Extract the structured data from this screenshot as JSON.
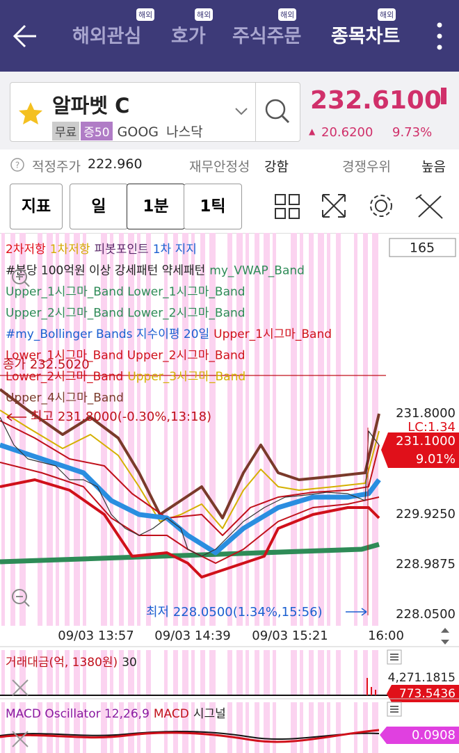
{
  "header": {
    "tabs": [
      {
        "label": "해외관심",
        "badge": "해외"
      },
      {
        "label": "호가",
        "badge": "해외"
      },
      {
        "label": "주식주문",
        "badge": "해외"
      },
      {
        "label": "종목차트",
        "badge": "해외"
      }
    ]
  },
  "stock": {
    "name": "알파벳 C",
    "tags": [
      "무료",
      "증50"
    ],
    "ticker": "GOOG",
    "market": "나스닥",
    "price": "232.6100",
    "change": "20.6200",
    "change_pct": "9.73%"
  },
  "info": [
    {
      "label": "적정주가",
      "value": "222.960"
    },
    {
      "label": "재무안정성",
      "value": "강함"
    },
    {
      "label": "경쟁우위",
      "value": "높음"
    }
  ],
  "toolbar": {
    "buttons": [
      "지표",
      "일",
      "1분",
      "1틱"
    ]
  },
  "chart": {
    "count": "165",
    "legend": [
      [
        {
          "text": "2차저항",
          "color": "#e0101a"
        },
        {
          "text": "1차저항",
          "color": "#d4a800"
        },
        {
          "text": "피봇포인트",
          "color": "#5a2a6a"
        },
        {
          "text": "1차 지지",
          "color": "#1a5fd0"
        }
      ],
      [
        {
          "text": "#분당 100억원 이상 강세패턴 약세패턴",
          "color": "#222222"
        },
        {
          "text": "my_VWAP_Band",
          "color": "#2e8b57"
        }
      ],
      [
        {
          "text": "Upper_1시그마_Band Lower_1시그마_Band",
          "color": "#2e8b57"
        }
      ],
      [
        {
          "text": "Upper_2시그마_Band Lower_2시그마_Band",
          "color": "#2e8b57"
        }
      ],
      [
        {
          "text": "#my_Bollinger Bands 지수이평 20일",
          "color": "#1a5fd0"
        },
        {
          "text": "Upper_1시그마_Band",
          "color": "#d0101a"
        }
      ],
      [
        {
          "text": "Lower_1시그마_Band Upper_2시그마_Band",
          "color": "#d0101a"
        }
      ],
      [
        {
          "text": "Lower_2시그마_Band",
          "color": "#d0101a"
        },
        {
          "text": "Upper_3시그마_Band",
          "color": "#d4b000"
        }
      ],
      [
        {
          "text": "Upper_4시그마_Band",
          "color": "#7a3a2a"
        }
      ]
    ],
    "close_label": "종가 232.5020",
    "high_label": "최고 231.8000(-0.30%,13:18)",
    "low_label": "최저 228.0500(1.34%,15:56)",
    "price_ticks": [
      "231.8000",
      "229.9250",
      "228.9875",
      "228.0500"
    ],
    "current": {
      "lc": "LC:1.34",
      "price": "231.1000",
      "pct": "9.01%"
    },
    "time_ticks": [
      "09/03 13:57",
      "09/03 14:39",
      "09/03 15:21",
      "16:00"
    ]
  },
  "volume": {
    "title": "거래대금(억, 1380원)",
    "value": "30",
    "tick": "4,271.1815",
    "current": "773.5436"
  },
  "macd": {
    "title": "MACD Oscillator 12,26,9",
    "series": [
      "MACD",
      "시그널"
    ],
    "current": "0.0908"
  }
}
